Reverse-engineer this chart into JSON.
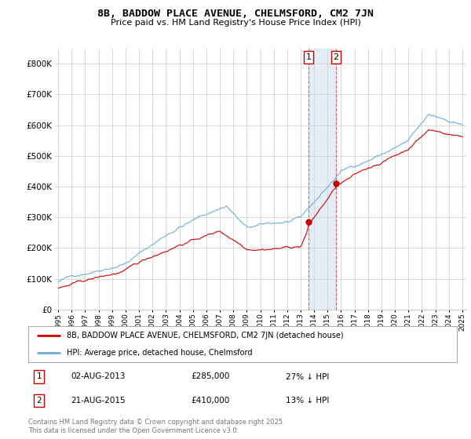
{
  "title": "8B, BADDOW PLACE AVENUE, CHELMSFORD, CM2 7JN",
  "subtitle": "Price paid vs. HM Land Registry's House Price Index (HPI)",
  "legend_line1": "8B, BADDOW PLACE AVENUE, CHELMSFORD, CM2 7JN (detached house)",
  "legend_line2": "HPI: Average price, detached house, Chelmsford",
  "transaction1_date": "02-AUG-2013",
  "transaction1_price": "£285,000",
  "transaction1_note": "27% ↓ HPI",
  "transaction2_date": "21-AUG-2015",
  "transaction2_price": "£410,000",
  "transaction2_note": "13% ↓ HPI",
  "footer": "Contains HM Land Registry data © Crown copyright and database right 2025.\nThis data is licensed under the Open Government Licence v3.0.",
  "hpi_color": "#6baed6",
  "price_color": "#cc0000",
  "marker_color": "#cc0000",
  "shade_color": "#c6dbef",
  "vline_color": "#e06060",
  "ylim_min": 0,
  "ylim_max": 850000,
  "yticks": [
    0,
    100000,
    200000,
    300000,
    400000,
    500000,
    600000,
    700000,
    800000
  ],
  "ytick_labels": [
    "£0",
    "£100K",
    "£200K",
    "£300K",
    "£400K",
    "£500K",
    "£600K",
    "£700K",
    "£800K"
  ],
  "transaction1_year": 2013.583,
  "transaction2_year": 2015.625,
  "transaction1_value": 285000,
  "transaction2_value": 410000,
  "year_start": 1995,
  "year_end": 2025
}
